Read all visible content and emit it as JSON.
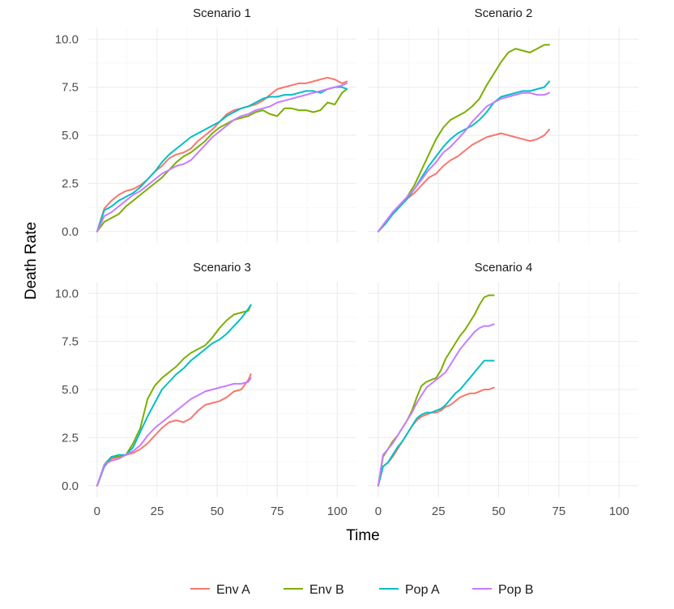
{
  "chart_data": {
    "type": "line",
    "xlabel": "Time",
    "ylabel": "Death Rate",
    "xlim": [
      -4,
      108
    ],
    "ylim": [
      -0.6,
      10.6
    ],
    "x_ticks": [
      0,
      25,
      50,
      75,
      100
    ],
    "y_ticks": [
      0.0,
      2.5,
      5.0,
      7.5,
      10.0
    ],
    "x_tick_labels": [
      "0",
      "25",
      "50",
      "75",
      "100"
    ],
    "y_tick_labels": [
      "0.0",
      "2.5",
      "5.0",
      "7.5",
      "10.0"
    ],
    "grid": true,
    "legend_position": "bottom",
    "series_names": [
      "Env A",
      "Env B",
      "Pop A",
      "Pop B"
    ],
    "series_colors": [
      "#F8766D",
      "#7CAE00",
      "#00BFC4",
      "#C77CFF"
    ],
    "panels": [
      {
        "title": "Scenario 1",
        "series": [
          {
            "name": "Env A",
            "x": [
              0,
              3,
              6,
              9,
              12,
              15,
              18,
              21,
              24,
              27,
              30,
              33,
              36,
              39,
              42,
              45,
              48,
              51,
              54,
              57,
              60,
              63,
              66,
              69,
              72,
              75,
              78,
              81,
              84,
              87,
              90,
              93,
              96,
              99,
              102,
              104
            ],
            "y": [
              0,
              1.2,
              1.6,
              1.9,
              2.1,
              2.2,
              2.4,
              2.7,
              3.1,
              3.4,
              3.8,
              4.0,
              4.1,
              4.3,
              4.7,
              5.0,
              5.3,
              5.7,
              6.1,
              6.3,
              6.4,
              6.5,
              6.6,
              6.8,
              7.1,
              7.4,
              7.5,
              7.6,
              7.7,
              7.7,
              7.8,
              7.9,
              8.0,
              7.9,
              7.7,
              7.8
            ]
          },
          {
            "name": "Env B",
            "x": [
              0,
              3,
              6,
              9,
              12,
              15,
              18,
              21,
              24,
              27,
              30,
              33,
              36,
              39,
              42,
              45,
              48,
              51,
              54,
              57,
              60,
              63,
              66,
              69,
              72,
              75,
              78,
              81,
              84,
              87,
              90,
              93,
              96,
              99,
              102,
              104
            ],
            "y": [
              0,
              0.5,
              0.7,
              0.9,
              1.3,
              1.6,
              1.9,
              2.2,
              2.5,
              2.8,
              3.2,
              3.6,
              3.9,
              4.1,
              4.4,
              4.7,
              5.1,
              5.4,
              5.6,
              5.8,
              5.9,
              6.0,
              6.2,
              6.3,
              6.1,
              6.0,
              6.4,
              6.4,
              6.3,
              6.3,
              6.2,
              6.3,
              6.7,
              6.6,
              7.2,
              7.4
            ]
          },
          {
            "name": "Pop A",
            "x": [
              0,
              3,
              6,
              9,
              12,
              15,
              18,
              21,
              24,
              27,
              30,
              33,
              36,
              39,
              42,
              45,
              48,
              51,
              54,
              57,
              60,
              63,
              66,
              69,
              72,
              75,
              78,
              81,
              84,
              87,
              90,
              93,
              96,
              99,
              102,
              104
            ],
            "y": [
              0,
              1.1,
              1.3,
              1.6,
              1.8,
              2.0,
              2.3,
              2.7,
              3.1,
              3.6,
              4.0,
              4.3,
              4.6,
              4.9,
              5.1,
              5.3,
              5.5,
              5.7,
              6.0,
              6.2,
              6.4,
              6.5,
              6.7,
              6.9,
              7.0,
              7.0,
              7.1,
              7.1,
              7.2,
              7.3,
              7.3,
              7.2,
              7.4,
              7.5,
              7.5,
              7.4
            ]
          },
          {
            "name": "Pop B",
            "x": [
              0,
              3,
              6,
              9,
              12,
              15,
              18,
              21,
              24,
              27,
              30,
              33,
              36,
              39,
              42,
              45,
              48,
              51,
              54,
              57,
              60,
              63,
              66,
              69,
              72,
              75,
              78,
              81,
              84,
              87,
              90,
              93,
              96,
              99,
              102,
              104
            ],
            "y": [
              0,
              0.8,
              1.0,
              1.3,
              1.6,
              1.9,
              2.1,
              2.4,
              2.7,
              3.0,
              3.2,
              3.4,
              3.5,
              3.7,
              4.1,
              4.5,
              4.9,
              5.2,
              5.5,
              5.8,
              6.0,
              6.1,
              6.3,
              6.4,
              6.5,
              6.7,
              6.8,
              6.9,
              7.0,
              7.1,
              7.2,
              7.3,
              7.4,
              7.5,
              7.6,
              7.7
            ]
          }
        ]
      },
      {
        "title": "Scenario 2",
        "series": [
          {
            "name": "Env A",
            "x": [
              0,
              3,
              6,
              9,
              12,
              15,
              18,
              21,
              24,
              27,
              30,
              33,
              36,
              39,
              42,
              45,
              48,
              51,
              54,
              57,
              60,
              63,
              66,
              69,
              71
            ],
            "y": [
              0,
              0.4,
              0.9,
              1.3,
              1.7,
              2.0,
              2.4,
              2.8,
              3.0,
              3.4,
              3.7,
              3.9,
              4.2,
              4.5,
              4.7,
              4.9,
              5.0,
              5.1,
              5.0,
              4.9,
              4.8,
              4.7,
              4.8,
              5.0,
              5.3
            ]
          },
          {
            "name": "Env B",
            "x": [
              0,
              3,
              6,
              9,
              12,
              15,
              18,
              21,
              24,
              27,
              30,
              33,
              36,
              39,
              42,
              45,
              48,
              51,
              54,
              57,
              60,
              63,
              66,
              69,
              71
            ],
            "y": [
              0,
              0.5,
              0.9,
              1.3,
              1.8,
              2.4,
              3.2,
              4.0,
              4.8,
              5.4,
              5.8,
              6.0,
              6.2,
              6.5,
              6.9,
              7.6,
              8.2,
              8.8,
              9.3,
              9.5,
              9.4,
              9.3,
              9.5,
              9.7,
              9.7
            ]
          },
          {
            "name": "Pop A",
            "x": [
              0,
              3,
              6,
              9,
              12,
              15,
              18,
              21,
              24,
              27,
              30,
              33,
              36,
              39,
              42,
              45,
              48,
              51,
              54,
              57,
              60,
              63,
              66,
              69,
              71
            ],
            "y": [
              0,
              0.4,
              0.9,
              1.3,
              1.7,
              2.2,
              2.8,
              3.4,
              3.9,
              4.4,
              4.8,
              5.1,
              5.3,
              5.5,
              5.8,
              6.2,
              6.7,
              7.0,
              7.1,
              7.2,
              7.3,
              7.3,
              7.4,
              7.5,
              7.8
            ]
          },
          {
            "name": "Pop B",
            "x": [
              0,
              3,
              6,
              9,
              12,
              15,
              18,
              21,
              24,
              27,
              30,
              33,
              36,
              39,
              42,
              45,
              48,
              51,
              54,
              57,
              60,
              63,
              66,
              69,
              71
            ],
            "y": [
              0,
              0.5,
              1.0,
              1.4,
              1.8,
              2.2,
              2.7,
              3.2,
              3.6,
              4.1,
              4.4,
              4.8,
              5.2,
              5.7,
              6.1,
              6.5,
              6.7,
              6.9,
              7.0,
              7.1,
              7.2,
              7.2,
              7.1,
              7.1,
              7.2
            ]
          }
        ]
      },
      {
        "title": "Scenario 3",
        "series": [
          {
            "name": "Env A",
            "x": [
              0,
              3,
              6,
              9,
              12,
              15,
              18,
              21,
              24,
              27,
              30,
              33,
              36,
              39,
              42,
              45,
              48,
              51,
              54,
              57,
              60,
              63,
              64
            ],
            "y": [
              0,
              1.0,
              1.4,
              1.5,
              1.6,
              1.7,
              1.9,
              2.2,
              2.6,
              3.0,
              3.3,
              3.4,
              3.3,
              3.5,
              3.9,
              4.2,
              4.3,
              4.4,
              4.6,
              4.9,
              5.0,
              5.5,
              5.8
            ]
          },
          {
            "name": "Env B",
            "x": [
              0,
              3,
              6,
              9,
              12,
              15,
              18,
              21,
              24,
              27,
              30,
              33,
              36,
              39,
              42,
              45,
              48,
              51,
              54,
              57,
              60,
              63,
              64
            ],
            "y": [
              0,
              1.1,
              1.5,
              1.5,
              1.6,
              2.2,
              3.0,
              4.5,
              5.2,
              5.6,
              5.9,
              6.2,
              6.6,
              6.9,
              7.1,
              7.3,
              7.7,
              8.2,
              8.6,
              8.9,
              9.0,
              9.1,
              9.4
            ]
          },
          {
            "name": "Pop A",
            "x": [
              0,
              3,
              6,
              9,
              12,
              15,
              18,
              21,
              24,
              27,
              30,
              33,
              36,
              39,
              42,
              45,
              48,
              51,
              54,
              57,
              60,
              63,
              64
            ],
            "y": [
              0,
              1.0,
              1.5,
              1.6,
              1.6,
              2.0,
              2.8,
              3.6,
              4.3,
              5.0,
              5.4,
              5.8,
              6.1,
              6.5,
              6.8,
              7.1,
              7.4,
              7.6,
              7.9,
              8.3,
              8.7,
              9.2,
              9.4
            ]
          },
          {
            "name": "Pop B",
            "x": [
              0,
              3,
              6,
              9,
              12,
              15,
              18,
              21,
              24,
              27,
              30,
              33,
              36,
              39,
              42,
              45,
              48,
              51,
              54,
              57,
              60,
              63,
              64
            ],
            "y": [
              0,
              1.1,
              1.3,
              1.4,
              1.6,
              1.8,
              2.1,
              2.6,
              3.0,
              3.3,
              3.6,
              3.9,
              4.2,
              4.5,
              4.7,
              4.9,
              5.0,
              5.1,
              5.2,
              5.3,
              5.3,
              5.4,
              5.6
            ]
          }
        ]
      },
      {
        "title": "Scenario 4",
        "series": [
          {
            "name": "Env A",
            "x": [
              0,
              2,
              4,
              6,
              8,
              10,
              12,
              14,
              16,
              18,
              20,
              22,
              24,
              26,
              28,
              30,
              32,
              34,
              36,
              38,
              40,
              42,
              44,
              46,
              48
            ],
            "y": [
              0,
              1.0,
              1.2,
              1.5,
              1.9,
              2.3,
              2.7,
              3.1,
              3.4,
              3.6,
              3.7,
              3.8,
              3.8,
              3.9,
              4.1,
              4.2,
              4.4,
              4.6,
              4.7,
              4.8,
              4.8,
              4.9,
              5.0,
              5.0,
              5.1
            ]
          },
          {
            "name": "Env B",
            "x": [
              0,
              2,
              4,
              6,
              8,
              10,
              12,
              14,
              16,
              18,
              20,
              22,
              24,
              26,
              28,
              30,
              32,
              34,
              36,
              38,
              40,
              42,
              44,
              46,
              48
            ],
            "y": [
              0,
              1.5,
              1.9,
              2.3,
              2.6,
              3.0,
              3.4,
              3.9,
              4.6,
              5.2,
              5.4,
              5.5,
              5.6,
              6.0,
              6.6,
              7.0,
              7.4,
              7.8,
              8.1,
              8.5,
              8.9,
              9.4,
              9.8,
              9.9,
              9.9
            ]
          },
          {
            "name": "Pop A",
            "x": [
              0,
              2,
              4,
              6,
              8,
              10,
              12,
              14,
              16,
              18,
              20,
              22,
              24,
              26,
              28,
              30,
              32,
              34,
              36,
              38,
              40,
              42,
              44,
              46,
              48
            ],
            "y": [
              0,
              1.0,
              1.2,
              1.6,
              2.0,
              2.3,
              2.7,
              3.1,
              3.5,
              3.7,
              3.8,
              3.8,
              3.9,
              4.0,
              4.2,
              4.5,
              4.8,
              5.0,
              5.3,
              5.6,
              5.9,
              6.2,
              6.5,
              6.5,
              6.5
            ]
          },
          {
            "name": "Pop B",
            "x": [
              0,
              2,
              4,
              6,
              8,
              10,
              12,
              14,
              16,
              18,
              20,
              22,
              24,
              26,
              28,
              30,
              32,
              34,
              36,
              38,
              40,
              42,
              44,
              46,
              48
            ],
            "y": [
              0,
              1.6,
              1.9,
              2.2,
              2.6,
              3.0,
              3.4,
              3.8,
              4.3,
              4.7,
              5.1,
              5.3,
              5.5,
              5.7,
              5.9,
              6.3,
              6.7,
              7.1,
              7.4,
              7.7,
              8.0,
              8.2,
              8.3,
              8.3,
              8.4
            ]
          }
        ]
      }
    ]
  }
}
